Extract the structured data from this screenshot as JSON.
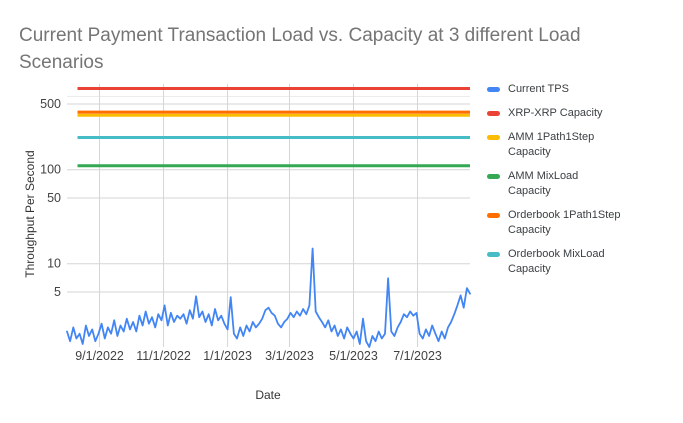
{
  "title": "Current Payment Transaction Load vs. Capacity at 3 different Load Scenarios",
  "colors": {
    "background": "#ffffff",
    "title_text": "#757575",
    "axis_text": "#333333",
    "tick_text": "#424242",
    "legend_text": "#3c4043",
    "gridline": "#d5d5d5",
    "minor_gridline": "#ececec"
  },
  "chart_data": {
    "type": "line",
    "title": "Current Payment Transaction Load vs. Capacity at 3 different Load Scenarios",
    "xlabel": "Date",
    "ylabel": "Throughput Per Second",
    "y_scale": "log",
    "grid": true,
    "legend_position": "right",
    "y_ticks": [
      500,
      100,
      50,
      10,
      5
    ],
    "y_minor_ticks": [
      600
    ],
    "x_tick_labels": [
      "9/1/2022",
      "11/1/2022",
      "1/1/2023",
      "3/1/2023",
      "5/1/2023",
      "7/1/2023"
    ],
    "x_tick_dates": [
      "2022-09-01",
      "2022-11-01",
      "2023-01-01",
      "2023-03-01",
      "2023-05-01",
      "2023-07-01"
    ],
    "x_range": [
      "2022-08-01",
      "2023-08-20"
    ],
    "y_range": [
      1.3,
      900
    ],
    "series": [
      {
        "name": "XRP-XRP Capacity",
        "color": "#EA4335",
        "kind": "hline",
        "value": 730,
        "start": "2022-08-11"
      },
      {
        "name": "AMM 1Path1Step Capacity",
        "color": "#FBBC04",
        "kind": "hline",
        "value": 380,
        "start": "2022-08-11"
      },
      {
        "name": "AMM MixLoad Capacity",
        "color": "#34A853",
        "kind": "hline",
        "value": 110,
        "start": "2022-08-11"
      },
      {
        "name": "Orderbook 1Path1Step Capacity",
        "color": "#FF6D01",
        "kind": "hline",
        "value": 410,
        "start": "2022-08-11"
      },
      {
        "name": "Orderbook MixLoad Capacity",
        "color": "#46BDC6",
        "kind": "hline",
        "value": 220,
        "start": "2022-08-11"
      },
      {
        "name": "Current TPS",
        "color": "#4285F4",
        "kind": "line",
        "start": "2022-08-01",
        "step_days": 3,
        "values": [
          1.9,
          1.5,
          2.1,
          1.6,
          1.8,
          1.4,
          2.2,
          1.7,
          2.0,
          1.5,
          1.8,
          2.3,
          1.6,
          2.1,
          1.8,
          2.5,
          1.7,
          2.2,
          1.9,
          2.6,
          2.0,
          2.4,
          1.9,
          2.8,
          2.2,
          3.1,
          2.3,
          2.7,
          2.1,
          2.9,
          2.5,
          3.6,
          2.2,
          3.0,
          2.4,
          2.8,
          2.6,
          2.9,
          2.3,
          3.2,
          2.6,
          4.5,
          2.7,
          3.1,
          2.4,
          2.9,
          2.2,
          3.3,
          2.5,
          2.8,
          2.3,
          2.0,
          4.4,
          1.8,
          1.6,
          2.1,
          1.7,
          2.2,
          1.9,
          2.4,
          2.1,
          2.3,
          2.6,
          3.2,
          3.4,
          3.0,
          2.8,
          2.3,
          2.1,
          2.4,
          2.6,
          3.0,
          2.7,
          3.1,
          2.8,
          3.3,
          2.9,
          3.6,
          14.5,
          3.1,
          2.7,
          2.4,
          2.1,
          2.5,
          1.9,
          2.2,
          1.7,
          2.0,
          1.6,
          2.1,
          1.8,
          1.6,
          1.9,
          1.4,
          2.6,
          1.5,
          1.3,
          1.7,
          1.5,
          1.9,
          1.6,
          1.8,
          7.0,
          1.9,
          1.7,
          2.1,
          2.4,
          2.9,
          2.7,
          3.1,
          2.8,
          3.0,
          1.8,
          1.6,
          2.0,
          1.7,
          2.2,
          1.8,
          1.5,
          1.9,
          1.6,
          2.1,
          2.4,
          2.9,
          3.6,
          4.6,
          3.4,
          5.5,
          4.8
        ]
      }
    ],
    "legend_order": [
      "Current TPS",
      "XRP-XRP Capacity",
      "AMM 1Path1Step Capacity",
      "AMM MixLoad Capacity",
      "Orderbook 1Path1Step Capacity",
      "Orderbook MixLoad Capacity"
    ]
  }
}
